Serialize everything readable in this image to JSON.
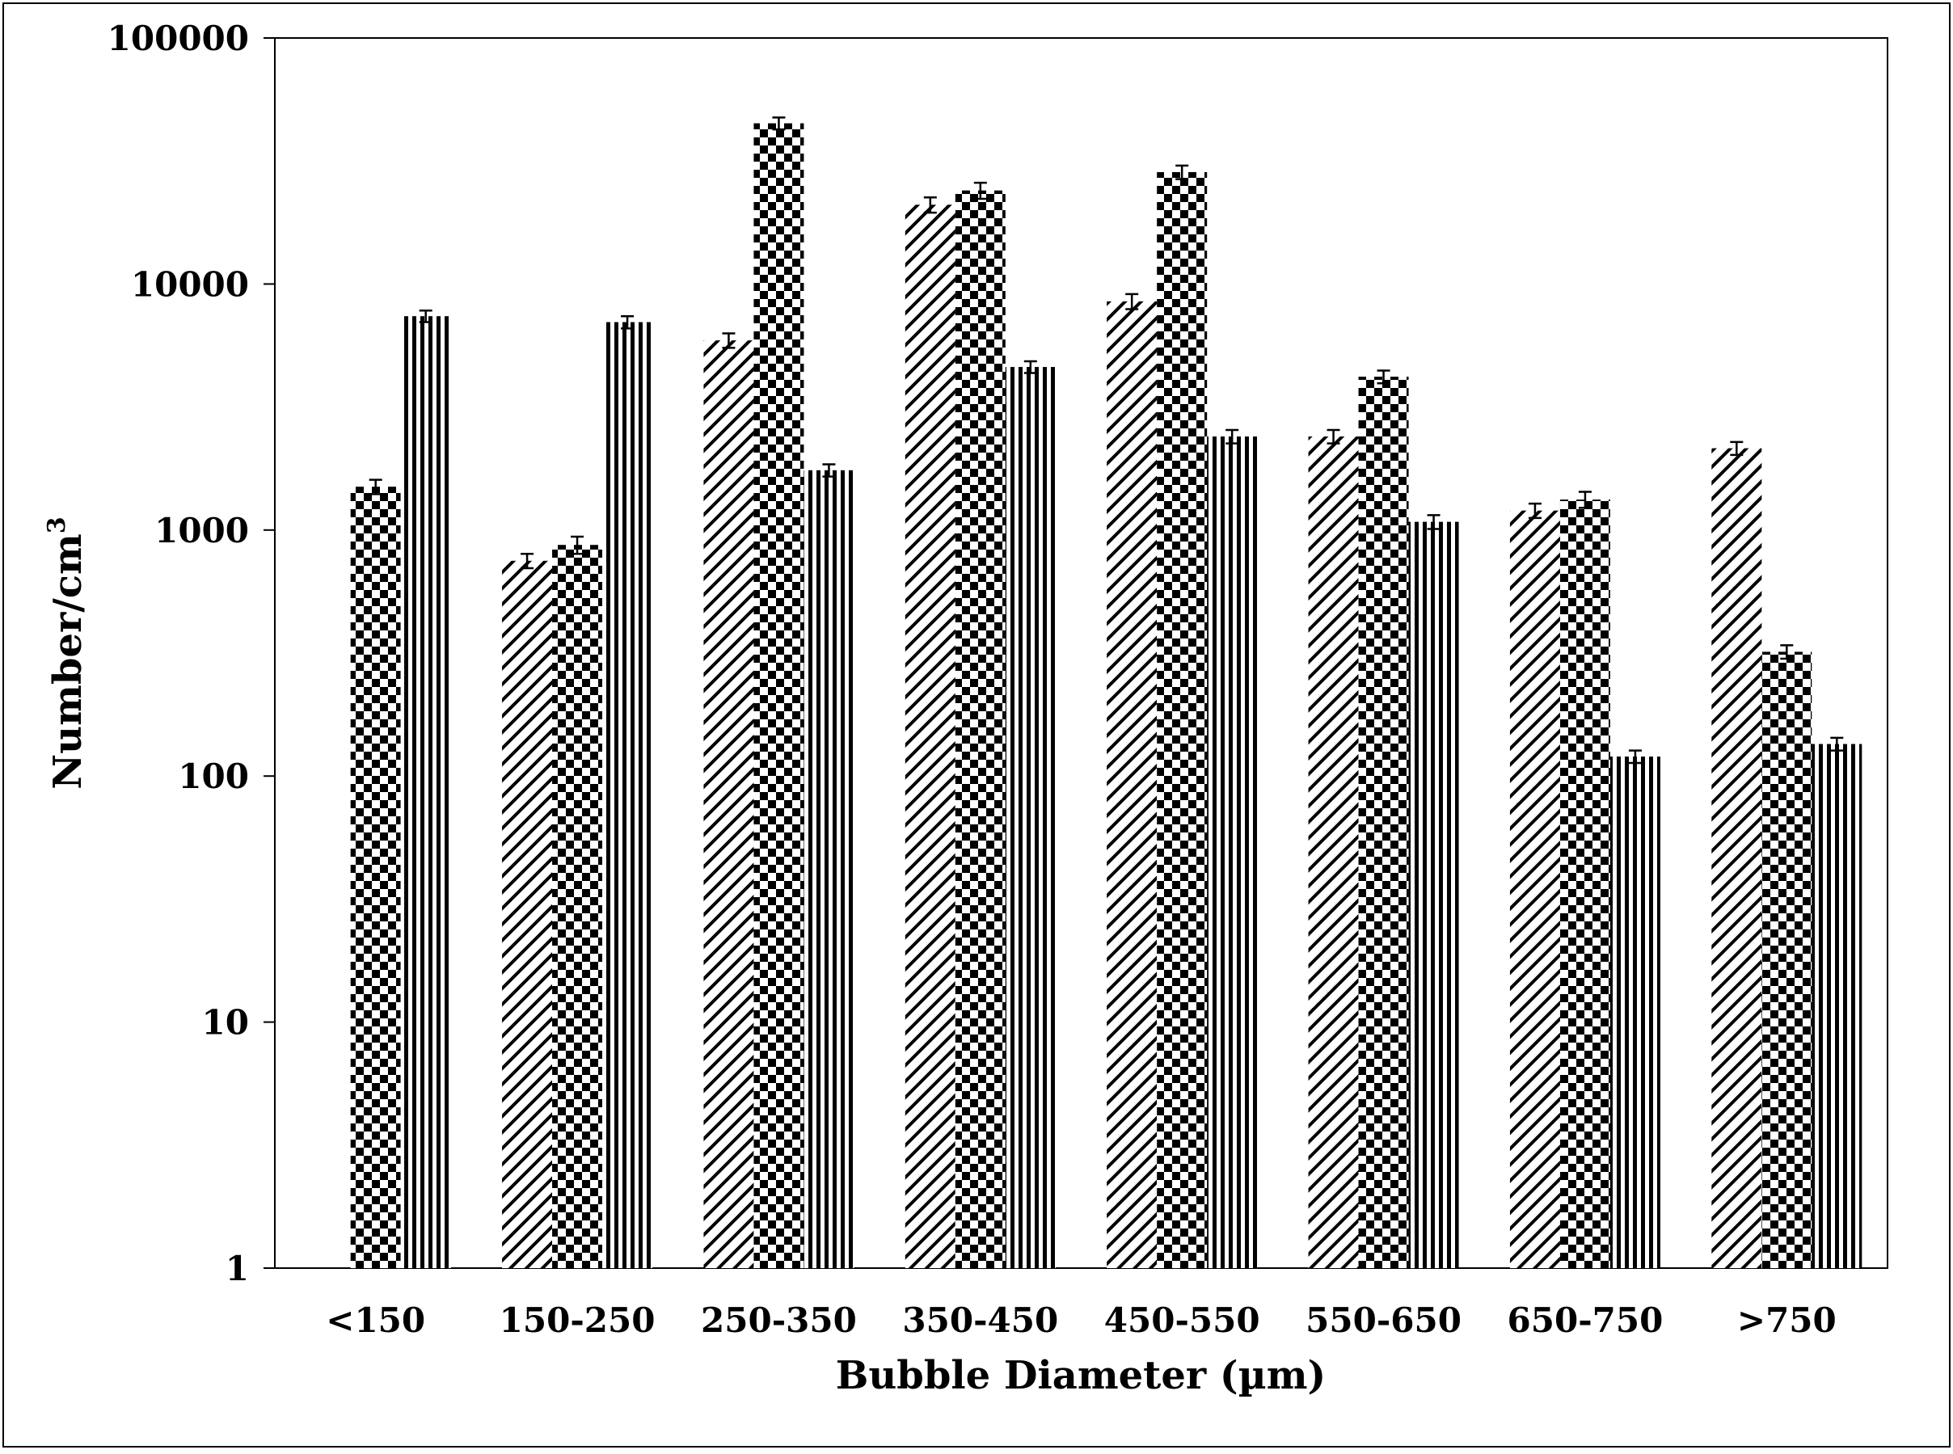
{
  "chart_data": {
    "type": "bar",
    "title": "",
    "xlabel": "Bubble Diameter  (µm)",
    "ylabel": "Number/cm",
    "ylabel_superscript": "3",
    "yscale": "log",
    "ylim": [
      1,
      100000
    ],
    "yticks": [
      "1",
      "10",
      "100",
      "1000",
      "10000",
      "100000"
    ],
    "grid": false,
    "legend": "none",
    "categories": [
      "<150",
      "150-250",
      "250-350",
      "350-450",
      "450-550",
      "550-650",
      "650-750",
      ">750"
    ],
    "series": [
      {
        "pattern": "diagonal-hatch",
        "values": [
          null,
          750,
          5900,
          21000,
          8500,
          2400,
          1200,
          2150
        ],
        "errors": [
          null,
          50,
          400,
          1500,
          600,
          150,
          80,
          130
        ]
      },
      {
        "pattern": "checker",
        "values": [
          1500,
          870,
          45000,
          24000,
          28500,
          4200,
          1330,
          320
        ],
        "errors": [
          100,
          70,
          2500,
          1800,
          1800,
          250,
          100,
          20
        ]
      },
      {
        "pattern": "vertical-stripes",
        "values": [
          7400,
          7000,
          1750,
          4600,
          2400,
          1080,
          120,
          135
        ],
        "errors": [
          400,
          400,
          100,
          250,
          150,
          70,
          7,
          8
        ]
      }
    ]
  }
}
